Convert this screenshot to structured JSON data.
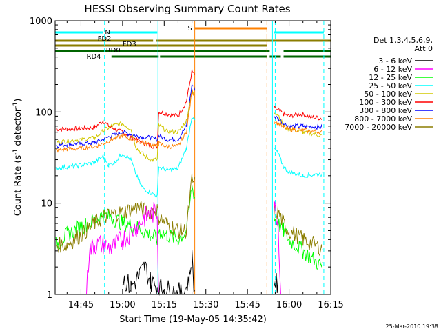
{
  "chart_data": {
    "type": "line",
    "title": "HESSI Observing Summary Count Rates",
    "xlabel": "Start Time (19-May-05 14:35:42)",
    "ylabel_main": "Count Rate (s",
    "ylabel_sup": "-1",
    "ylabel_tail": " detector",
    "ylabel_end": ")",
    "y_scale": "log",
    "ylim": [
      1,
      1000
    ],
    "xlim": [
      "14:35:42",
      "16:15:00"
    ],
    "y_ticks": [
      {
        "value": 1,
        "label": "1"
      },
      {
        "value": 10,
        "label": "10"
      },
      {
        "value": 100,
        "label": "100"
      },
      {
        "value": 1000,
        "label": "1000"
      }
    ],
    "x_ticks": [
      {
        "value": "14:45",
        "label": "14:45"
      },
      {
        "value": "15:00",
        "label": "15:00"
      },
      {
        "value": "15:15",
        "label": "15:15"
      },
      {
        "value": "15:30",
        "label": "15:30"
      },
      {
        "value": "15:45",
        "label": "15:45"
      },
      {
        "value": "16:00",
        "label": "16:00"
      },
      {
        "value": "16:15",
        "label": "16:15"
      }
    ],
    "legend_position": "right",
    "legend_header": [
      "Det 1,3,4,5,6,9,",
      "Att 0"
    ],
    "series": [
      {
        "name": "3 - 6 keV",
        "color": "#000000"
      },
      {
        "name": "6 - 12 keV",
        "color": "#ff00ff"
      },
      {
        "name": "12 - 25 keV",
        "color": "#00ff00"
      },
      {
        "name": "25 - 50 keV",
        "color": "#00ffff"
      },
      {
        "name": "50 - 100 keV",
        "color": "#d2c800"
      },
      {
        "name": "100 - 300 keV",
        "color": "#ff0000"
      },
      {
        "name": "300 - 800 keV",
        "color": "#0000ff"
      },
      {
        "name": "800 - 7000 keV",
        "color": "#ff8000"
      },
      {
        "name": "7000 - 20000 keV",
        "color": "#8b7d00"
      }
    ],
    "flags": [
      {
        "label": "N",
        "color": "#00ffff",
        "segments": [
          [
            "14:35:42",
            "14:53:00"
          ],
          [
            "14:55:00",
            "15:12:30"
          ],
          [
            "15:54:30",
            "16:12:30"
          ]
        ]
      },
      {
        "label": "S",
        "color": "#ff8000",
        "segments": [
          [
            "15:26:00",
            "15:52:00"
          ]
        ]
      },
      {
        "label": "FD2",
        "color": "#8b7d00",
        "segments": [
          [
            "14:35:42",
            "15:11:00"
          ],
          [
            "15:12:00",
            "16:15:00"
          ]
        ]
      },
      {
        "label": "FD3",
        "color": "#8b7d00",
        "segments": [
          [
            "14:35:42",
            "15:52:00"
          ]
        ]
      },
      {
        "label": "RD0",
        "color": "#006400",
        "segments": [
          [
            "14:35:42",
            "15:53:00"
          ],
          [
            "15:58:00",
            "16:15:00"
          ]
        ]
      },
      {
        "label": "RD4",
        "color": "#006400",
        "segments": [
          [
            "14:56:00",
            "15:13:00"
          ],
          [
            "15:13:30",
            "15:52:00"
          ],
          [
            "15:53:00",
            "15:57:00"
          ],
          [
            "15:58:00",
            "16:15:00"
          ]
        ]
      }
    ],
    "vertical_lines": [
      {
        "time": "14:53:30",
        "color": "#00ffff",
        "style": "dashed"
      },
      {
        "time": "15:12:45",
        "color": "#00ffff",
        "style": "solid"
      },
      {
        "time": "15:26:00",
        "color": "#ff8000",
        "style": "solid"
      },
      {
        "time": "15:52:00",
        "color": "#ff8000",
        "style": "dashed"
      },
      {
        "time": "15:54:00",
        "color": "#00ffff",
        "style": "solid"
      },
      {
        "time": "15:55:00",
        "color": "#00ffff",
        "style": "dashed"
      },
      {
        "time": "16:12:30",
        "color": "#00ffff",
        "style": "dashed"
      }
    ],
    "segments": [
      {
        "start": "14:35:42",
        "end": "15:26:00"
      },
      {
        "start": "15:54:00",
        "end": "16:13:00"
      }
    ],
    "curves": {
      "100 - 300 keV": [
        [
          "14:36",
          65
        ],
        [
          "14:40",
          65
        ],
        [
          "14:45",
          66
        ],
        [
          "14:50",
          68
        ],
        [
          "14:53",
          80
        ],
        [
          "14:55",
          70
        ],
        [
          "14:57",
          65
        ],
        [
          "15:00",
          60
        ],
        [
          "15:05",
          50
        ],
        [
          "15:08",
          45
        ],
        [
          "15:11",
          42
        ],
        [
          "15:12:30",
          42
        ],
        [
          "15:13",
          100
        ],
        [
          "15:16",
          95
        ],
        [
          "15:20",
          90
        ],
        [
          "15:23",
          130
        ],
        [
          "15:25",
          280
        ],
        [
          "15:26",
          250
        ],
        [
          "15:54:30",
          110
        ],
        [
          "15:56",
          105
        ],
        [
          "15:58",
          95
        ],
        [
          "16:00",
          90
        ],
        [
          "16:04",
          95
        ],
        [
          "16:08",
          88
        ],
        [
          "16:12",
          85
        ]
      ],
      "300 - 800 keV": [
        [
          "14:36",
          43
        ],
        [
          "14:40",
          44
        ],
        [
          "14:45",
          45
        ],
        [
          "14:50",
          46
        ],
        [
          "14:53",
          50
        ],
        [
          "14:56",
          55
        ],
        [
          "15:00",
          60
        ],
        [
          "15:05",
          55
        ],
        [
          "15:10",
          52
        ],
        [
          "15:12:30",
          50
        ],
        [
          "15:13",
          55
        ],
        [
          "15:16",
          50
        ],
        [
          "15:20",
          50
        ],
        [
          "15:23",
          70
        ],
        [
          "15:25",
          200
        ],
        [
          "15:26",
          180
        ],
        [
          "15:54:30",
          90
        ],
        [
          "15:56",
          85
        ],
        [
          "15:58",
          75
        ],
        [
          "16:00",
          70
        ],
        [
          "16:05",
          70
        ],
        [
          "16:12",
          68
        ]
      ],
      "50 - 100 keV": [
        [
          "14:36",
          47
        ],
        [
          "14:40",
          48
        ],
        [
          "14:45",
          50
        ],
        [
          "14:50",
          52
        ],
        [
          "14:53",
          62
        ],
        [
          "14:56",
          70
        ],
        [
          "15:00",
          75
        ],
        [
          "15:03",
          65
        ],
        [
          "15:05",
          40
        ],
        [
          "15:08",
          33
        ],
        [
          "15:10",
          30
        ],
        [
          "15:12:30",
          30
        ],
        [
          "15:13",
          72
        ],
        [
          "15:16",
          62
        ],
        [
          "15:20",
          60
        ],
        [
          "15:23",
          80
        ],
        [
          "15:25",
          170
        ],
        [
          "15:26",
          150
        ],
        [
          "15:54:30",
          100
        ],
        [
          "15:56",
          95
        ],
        [
          "15:58",
          70
        ],
        [
          "16:00",
          65
        ],
        [
          "16:05",
          60
        ],
        [
          "16:12",
          55
        ]
      ],
      "800 - 7000 keV": [
        [
          "14:36",
          38
        ],
        [
          "14:40",
          39
        ],
        [
          "14:45",
          40
        ],
        [
          "14:50",
          42
        ],
        [
          "14:53",
          45
        ],
        [
          "14:56",
          50
        ],
        [
          "15:00",
          55
        ],
        [
          "15:05",
          48
        ],
        [
          "15:10",
          44
        ],
        [
          "15:12:30",
          42
        ],
        [
          "15:13",
          45
        ],
        [
          "15:16",
          42
        ],
        [
          "15:20",
          42
        ],
        [
          "15:23",
          60
        ],
        [
          "15:25",
          170
        ],
        [
          "15:26",
          150
        ],
        [
          "15:54:30",
          80
        ],
        [
          "15:56",
          75
        ],
        [
          "15:58",
          68
        ],
        [
          "16:00",
          65
        ],
        [
          "16:05",
          63
        ],
        [
          "16:12",
          60
        ]
      ],
      "25 - 50 keV": [
        [
          "14:36",
          24
        ],
        [
          "14:40",
          25
        ],
        [
          "14:45",
          26
        ],
        [
          "14:50",
          28
        ],
        [
          "14:53",
          33
        ],
        [
          "14:55",
          26
        ],
        [
          "14:57",
          28
        ],
        [
          "15:00",
          35
        ],
        [
          "15:03",
          30
        ],
        [
          "15:05",
          20
        ],
        [
          "15:07",
          15
        ],
        [
          "15:10",
          13
        ],
        [
          "15:12:30",
          12
        ],
        [
          "15:13",
          25
        ],
        [
          "15:16",
          23
        ],
        [
          "15:20",
          24
        ],
        [
          "15:23",
          40
        ],
        [
          "15:25",
          90
        ],
        [
          "15:26",
          80
        ],
        [
          "15:54:30",
          40
        ],
        [
          "15:56",
          35
        ],
        [
          "15:58",
          25
        ],
        [
          "16:00",
          22
        ],
        [
          "16:05",
          20
        ],
        [
          "16:12",
          21
        ]
      ],
      "12 - 25 keV": [
        [
          "14:36",
          3.5
        ],
        [
          "14:40",
          4.5
        ],
        [
          "14:45",
          5.5
        ],
        [
          "14:50",
          6.5
        ],
        [
          "14:53",
          7.5
        ],
        [
          "14:56",
          7
        ],
        [
          "15:00",
          6
        ],
        [
          "15:05",
          5.5
        ],
        [
          "15:10",
          4.5
        ],
        [
          "15:12:30",
          4
        ],
        [
          "15:13",
          5
        ],
        [
          "15:16",
          4.5
        ],
        [
          "15:20",
          4
        ],
        [
          "15:23",
          5
        ],
        [
          "15:25",
          15
        ],
        [
          "15:26",
          12
        ],
        [
          "15:54:30",
          7
        ],
        [
          "15:56",
          6
        ],
        [
          "15:58",
          5
        ],
        [
          "16:00",
          4
        ],
        [
          "16:05",
          3
        ],
        [
          "16:12",
          2
        ]
      ],
      "7000 - 20000 keV": [
        [
          "14:36",
          3.5
        ],
        [
          "14:40",
          3.5
        ],
        [
          "14:45",
          4.5
        ],
        [
          "14:50",
          6
        ],
        [
          "14:53",
          7
        ],
        [
          "14:56",
          7.5
        ],
        [
          "15:00",
          8
        ],
        [
          "15:05",
          9
        ],
        [
          "15:10",
          8
        ],
        [
          "15:12:30",
          8.5
        ],
        [
          "15:13",
          7
        ],
        [
          "15:16",
          6
        ],
        [
          "15:20",
          5
        ],
        [
          "15:23",
          5
        ],
        [
          "15:25",
          18
        ],
        [
          "15:26",
          16
        ],
        [
          "15:54:30",
          8
        ],
        [
          "15:56",
          8
        ],
        [
          "15:58",
          6
        ],
        [
          "16:00",
          5
        ],
        [
          "16:05",
          4
        ],
        [
          "16:12",
          3.2
        ]
      ],
      "6 - 12 keV": [
        [
          "14:47",
          1
        ],
        [
          "14:48",
          3
        ],
        [
          "14:50",
          3.5
        ],
        [
          "14:53",
          3.5
        ],
        [
          "14:56",
          3.2
        ],
        [
          "15:00",
          4
        ],
        [
          "15:05",
          5.5
        ],
        [
          "15:08",
          7
        ],
        [
          "15:10",
          7.5
        ],
        [
          "15:12:30",
          8
        ],
        [
          "15:13",
          1
        ],
        [
          "15:54:30",
          9
        ],
        [
          "15:56",
          7
        ],
        [
          "15:57",
          1
        ]
      ],
      "3 - 6 keV": [
        [
          "15:00",
          1.5
        ],
        [
          "15:03",
          1.2
        ],
        [
          "15:06",
          1.6
        ],
        [
          "15:08",
          2
        ],
        [
          "15:10",
          1.4
        ],
        [
          "15:12:30",
          1.2
        ],
        [
          "15:22",
          1
        ],
        [
          "15:24",
          1.5
        ],
        [
          "15:25",
          2.5
        ],
        [
          "15:26",
          1
        ],
        [
          "15:54:30",
          1.5
        ],
        [
          "15:56",
          1.2
        ]
      ]
    }
  },
  "footer": {
    "timestamp": "25-Mar-2010 19:38"
  }
}
